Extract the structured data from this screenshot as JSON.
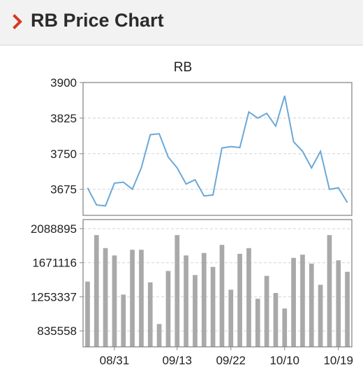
{
  "header": {
    "title": "RB Price Chart",
    "icon": "chevron-right-icon",
    "accent_color": "#d9381e"
  },
  "chart_data": [
    {
      "type": "line",
      "title": "RB",
      "color": "#6aa8d8",
      "ylim": [
        3620,
        3900
      ],
      "y_ticks": [
        3675,
        3750,
        3825,
        3900
      ],
      "values": [
        3678,
        3642,
        3640,
        3688,
        3690,
        3675,
        3720,
        3790,
        3792,
        3743,
        3720,
        3686,
        3695,
        3661,
        3663,
        3762,
        3765,
        3763,
        3838,
        3825,
        3835,
        3808,
        3872,
        3775,
        3755,
        3720,
        3755,
        3675,
        3678,
        3647
      ],
      "grid": true
    },
    {
      "type": "bar",
      "color": "#a9a9a9",
      "ylim": [
        640000,
        2200000
      ],
      "y_ticks": [
        835558,
        1253337,
        1671116,
        2088895
      ],
      "x_tick_labels": [
        "08/31",
        "09/13",
        "09/22",
        "10/10",
        "10/19"
      ],
      "x_tick_indices": [
        3,
        10,
        16,
        22,
        28
      ],
      "values": [
        1440000,
        2010000,
        1850000,
        1760000,
        1280000,
        1830000,
        1830000,
        1430000,
        920000,
        1570000,
        2010000,
        1760000,
        1520000,
        1790000,
        1620000,
        1890000,
        1340000,
        1780000,
        1850000,
        1230000,
        1510000,
        1300000,
        1110000,
        1730000,
        1770000,
        1660000,
        1400000,
        2010000,
        1700000,
        1560000
      ],
      "grid": true
    }
  ]
}
